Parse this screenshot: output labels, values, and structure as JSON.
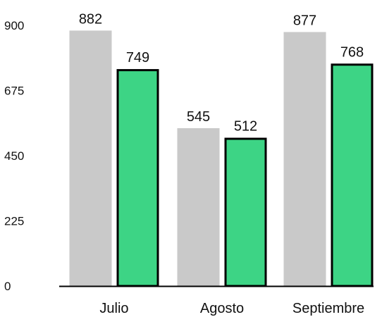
{
  "chart_data": {
    "type": "bar",
    "title": "",
    "xlabel": "",
    "ylabel": "",
    "categories": [
      "Julio",
      "Agosto",
      "Septiembre"
    ],
    "series": [
      {
        "values": [
          882,
          545,
          877
        ],
        "color": "#c9c9c9",
        "outlined": false
      },
      {
        "values": [
          749,
          512,
          768
        ],
        "color": "#3dd485",
        "outlined": true
      }
    ],
    "yticks": [
      0,
      225,
      450,
      675,
      900
    ],
    "ylim": [
      0,
      900
    ],
    "grid": false,
    "legend": "none",
    "data_labels": true
  }
}
